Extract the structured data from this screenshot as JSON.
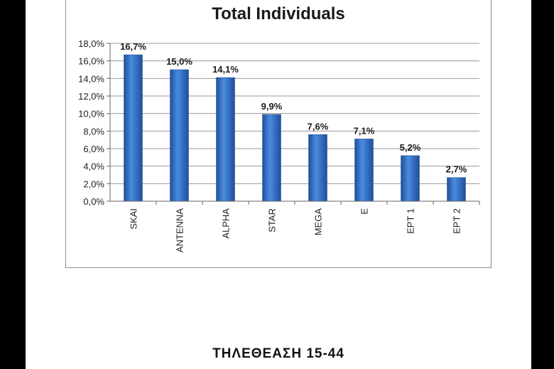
{
  "chart_data": {
    "type": "bar",
    "title": "Total Individuals",
    "categories": [
      "SKAI",
      "ANTENNA",
      "ALPHA",
      "STAR",
      "MEGA",
      "E",
      "EPT 1",
      "EPT 2"
    ],
    "values": [
      16.7,
      15.0,
      14.1,
      9.9,
      7.6,
      7.1,
      5.2,
      2.7
    ],
    "data_labels": [
      "16,7%",
      "15,0%",
      "14,1%",
      "9,9%",
      "7,6%",
      "7,1%",
      "5,2%",
      "2,7%"
    ],
    "ytick_labels": [
      "0,0%",
      "2,0%",
      "4,0%",
      "6,0%",
      "8,0%",
      "10,0%",
      "12,0%",
      "14,0%",
      "16,0%",
      "18,0%"
    ],
    "ylim": [
      0,
      18
    ],
    "grid": true,
    "bar_color": "#2f6fc4",
    "xlabel": "",
    "ylabel": ""
  },
  "caption": "ΤΗΛΕΘΕΑΣΗ 15-44"
}
